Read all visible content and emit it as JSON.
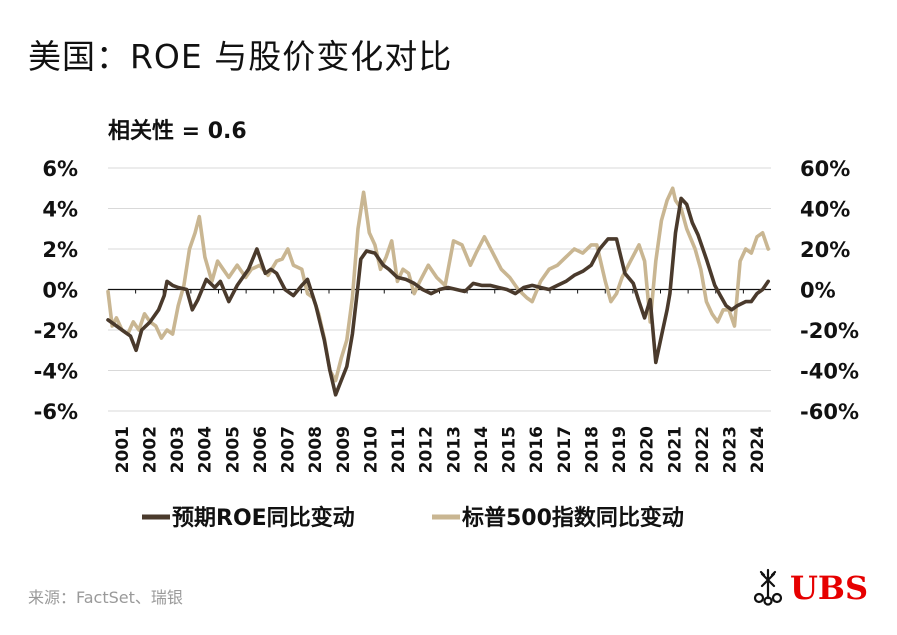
{
  "title": "美国：ROE 与股价变化对比",
  "source": "来源：FactSet、瑞银",
  "logo": {
    "text": "UBS",
    "icon": "ubs-keys-icon",
    "color": "#e60000"
  },
  "colors": {
    "roe": "#4a3a2c",
    "spx": "#c9b692",
    "grid": "#d9d9d9",
    "axis": "#111111"
  },
  "chart_data": {
    "type": "line",
    "annotation": "相关性 = 0.6",
    "grid": true,
    "legend_position": "bottom",
    "y_left": {
      "range": [
        -6,
        6
      ],
      "ticks": [
        "6%",
        "4%",
        "2%",
        "0%",
        "-2%",
        "-4%",
        "-6%"
      ]
    },
    "y_right": {
      "range": [
        -60,
        60
      ],
      "ticks": [
        "60%",
        "40%",
        "20%",
        "0%",
        "-20%",
        "-40%",
        "-60%"
      ]
    },
    "x_ticks": [
      "2001",
      "2002",
      "2003",
      "2004",
      "2005",
      "2006",
      "2007",
      "2008",
      "2009",
      "2010",
      "2011",
      "2012",
      "2013",
      "2014",
      "2015",
      "2016",
      "2017",
      "2018",
      "2019",
      "2020",
      "2021",
      "2022",
      "2023",
      "2024"
    ],
    "x_range": [
      2001,
      2024.6
    ],
    "series": [
      {
        "name": "预期ROE同比变动",
        "axis": "left",
        "x": [
          2001.0,
          2001.2,
          2001.5,
          2001.8,
          2002.0,
          2002.2,
          2002.5,
          2002.8,
          2003.0,
          2003.1,
          2003.3,
          2003.5,
          2003.8,
          2004.0,
          2004.2,
          2004.5,
          2004.8,
          2005.0,
          2005.3,
          2005.6,
          2005.8,
          2006.0,
          2006.3,
          2006.6,
          2006.8,
          2007.0,
          2007.3,
          2007.6,
          2007.9,
          2008.1,
          2008.4,
          2008.7,
          2008.9,
          2009.1,
          2009.3,
          2009.5,
          2009.7,
          2009.9,
          2010.0,
          2010.2,
          2010.5,
          2010.8,
          2011.0,
          2011.3,
          2011.6,
          2011.9,
          2012.2,
          2012.5,
          2012.8,
          2013.1,
          2013.4,
          2013.7,
          2014.0,
          2014.3,
          2014.6,
          2014.9,
          2015.2,
          2015.5,
          2015.8,
          2016.1,
          2016.4,
          2016.7,
          2017.0,
          2017.3,
          2017.6,
          2017.9,
          2018.2,
          2018.5,
          2018.8,
          2019.1,
          2019.4,
          2019.7,
          2019.9,
          2020.1,
          2020.3,
          2020.5,
          2020.7,
          2020.9,
          2021.0,
          2021.2,
          2021.4,
          2021.6,
          2021.8,
          2022.0,
          2022.3,
          2022.6,
          2022.8,
          2023.0,
          2023.2,
          2023.4,
          2023.7,
          2023.9,
          2024.1,
          2024.3,
          2024.5
        ],
        "values": [
          -1.5,
          -1.7,
          -2.0,
          -2.3,
          -3.0,
          -2.0,
          -1.6,
          -1.0,
          -0.3,
          0.4,
          0.2,
          0.1,
          0.0,
          -1.0,
          -0.5,
          0.5,
          0.1,
          0.4,
          -0.6,
          0.2,
          0.6,
          1.0,
          2.0,
          0.8,
          1.0,
          0.8,
          0.0,
          -0.3,
          0.2,
          0.5,
          -0.8,
          -2.5,
          -4.0,
          -5.2,
          -4.5,
          -3.8,
          -2.2,
          0.2,
          1.5,
          1.9,
          1.8,
          1.2,
          1.0,
          0.6,
          0.5,
          0.3,
          0.0,
          -0.2,
          0.0,
          0.1,
          0.0,
          -0.1,
          0.3,
          0.2,
          0.2,
          0.1,
          0.0,
          -0.2,
          0.1,
          0.2,
          0.1,
          0.0,
          0.2,
          0.4,
          0.7,
          0.9,
          1.2,
          2.0,
          2.5,
          2.5,
          0.8,
          0.3,
          -0.6,
          -1.4,
          -0.5,
          -3.6,
          -2.3,
          -1.0,
          -0.2,
          2.8,
          4.5,
          4.2,
          3.3,
          2.7,
          1.5,
          0.2,
          -0.3,
          -0.8,
          -1.0,
          -0.8,
          -0.6,
          -0.6,
          -0.2,
          0.0,
          0.4
        ]
      },
      {
        "name": "标普500指数同比变动",
        "axis": "right",
        "x": [
          2001.0,
          2001.15,
          2001.3,
          2001.5,
          2001.7,
          2001.9,
          2002.1,
          2002.3,
          2002.5,
          2002.7,
          2002.9,
          2003.1,
          2003.3,
          2003.5,
          2003.7,
          2003.9,
          2004.1,
          2004.25,
          2004.45,
          2004.7,
          2004.9,
          2005.1,
          2005.3,
          2005.6,
          2005.9,
          2006.1,
          2006.4,
          2006.7,
          2007.0,
          2007.2,
          2007.4,
          2007.6,
          2007.9,
          2008.1,
          2008.3,
          2008.5,
          2008.7,
          2008.9,
          2009.1,
          2009.3,
          2009.5,
          2009.7,
          2009.9,
          2010.1,
          2010.3,
          2010.5,
          2010.7,
          2010.9,
          2011.1,
          2011.3,
          2011.5,
          2011.7,
          2011.9,
          2012.1,
          2012.4,
          2012.7,
          2013.0,
          2013.3,
          2013.6,
          2013.9,
          2014.1,
          2014.4,
          2014.7,
          2015.0,
          2015.3,
          2015.6,
          2015.9,
          2016.1,
          2016.4,
          2016.7,
          2017.0,
          2017.3,
          2017.6,
          2017.9,
          2018.2,
          2018.4,
          2018.7,
          2018.9,
          2019.1,
          2019.3,
          2019.6,
          2019.9,
          2020.1,
          2020.3,
          2020.5,
          2020.7,
          2020.9,
          2021.1,
          2021.2,
          2021.4,
          2021.6,
          2021.9,
          2022.1,
          2022.3,
          2022.5,
          2022.7,
          2022.9,
          2023.1,
          2023.3,
          2023.5,
          2023.7,
          2023.9,
          2024.1,
          2024.3,
          2024.5
        ],
        "values": [
          -1,
          -18,
          -14,
          -20,
          -22,
          -16,
          -20,
          -12,
          -16,
          -18,
          -24,
          -20,
          -22,
          -8,
          2,
          20,
          28,
          36,
          16,
          4,
          14,
          10,
          6,
          12,
          6,
          10,
          12,
          7,
          14,
          15,
          20,
          12,
          10,
          -2,
          -4,
          -12,
          -24,
          -40,
          -45,
          -34,
          -25,
          -4,
          30,
          48,
          28,
          22,
          10,
          16,
          24,
          4,
          10,
          8,
          -2,
          4,
          12,
          6,
          2,
          24,
          22,
          12,
          18,
          26,
          18,
          10,
          6,
          0,
          -4,
          -6,
          4,
          10,
          12,
          16,
          20,
          18,
          22,
          22,
          4,
          -6,
          -2,
          6,
          14,
          22,
          14,
          -16,
          14,
          34,
          44,
          50,
          44,
          40,
          30,
          20,
          10,
          -6,
          -12,
          -16,
          -10,
          -10,
          -18,
          14,
          20,
          18,
          26,
          28,
          20
        ]
      }
    ]
  }
}
